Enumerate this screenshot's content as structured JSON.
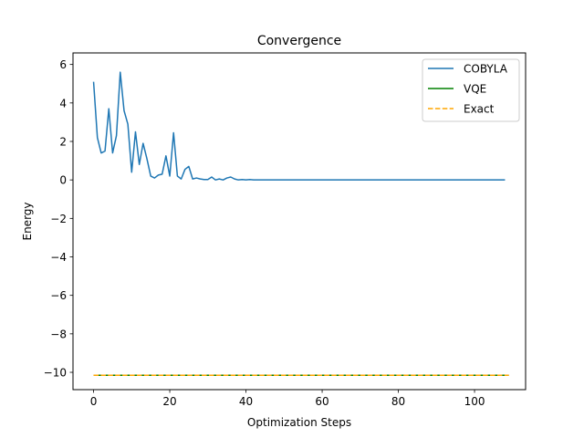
{
  "chart_data": {
    "type": "line",
    "title": "Convergence",
    "xlabel": "Optimization Steps",
    "ylabel": "Energy",
    "xlim": [
      -5.4,
      113.4
    ],
    "ylim": [
      -10.9,
      6.6
    ],
    "xticks": [
      0,
      20,
      40,
      60,
      80,
      100
    ],
    "xtick_labels": [
      "0",
      "20",
      "40",
      "60",
      "80",
      "100"
    ],
    "yticks": [
      6,
      4,
      2,
      0,
      -2,
      -4,
      -6,
      -8,
      -10
    ],
    "ytick_labels": [
      "6",
      "4",
      "2",
      "0",
      "−2",
      "−4",
      "−6",
      "−8",
      "−10"
    ],
    "grid": false,
    "legend_position": "top-right",
    "series": [
      {
        "name": "COBYLA",
        "color": "#1f77b4",
        "style": "solid",
        "x": [
          0,
          1,
          2,
          3,
          4,
          5,
          6,
          7,
          8,
          9,
          10,
          11,
          12,
          13,
          14,
          15,
          16,
          17,
          18,
          19,
          20,
          21,
          22,
          23,
          24,
          25,
          26,
          27,
          28,
          29,
          30,
          31,
          32,
          33,
          34,
          35,
          36,
          37,
          38,
          39,
          40,
          41,
          42,
          45,
          50,
          55,
          60,
          65,
          70,
          75,
          80,
          85,
          90,
          95,
          100,
          105,
          108
        ],
        "y": [
          5.1,
          2.2,
          1.4,
          1.5,
          3.7,
          1.4,
          2.3,
          5.6,
          3.6,
          2.9,
          0.4,
          2.5,
          0.8,
          1.9,
          1.1,
          0.2,
          0.1,
          0.25,
          0.3,
          1.25,
          0.2,
          2.45,
          0.2,
          0.05,
          0.55,
          0.7,
          0.05,
          0.1,
          0.05,
          0.02,
          0.02,
          0.15,
          0.0,
          0.05,
          0.0,
          0.1,
          0.15,
          0.05,
          0.0,
          0.02,
          0.0,
          0.02,
          0.0,
          0.0,
          0.0,
          0.0,
          0.0,
          0.0,
          0.0,
          0.0,
          0.0,
          0.0,
          0.0,
          0.0,
          0.0,
          0.0,
          0.0
        ]
      },
      {
        "name": "VQE",
        "color": "#008000",
        "style": "solid",
        "x": [
          0,
          109
        ],
        "y": [
          -10.15,
          -10.15
        ]
      },
      {
        "name": "Exact",
        "color": "#ffa500",
        "style": "dashed",
        "x": [
          0,
          109
        ],
        "y": [
          -10.15,
          -10.15
        ]
      }
    ]
  }
}
